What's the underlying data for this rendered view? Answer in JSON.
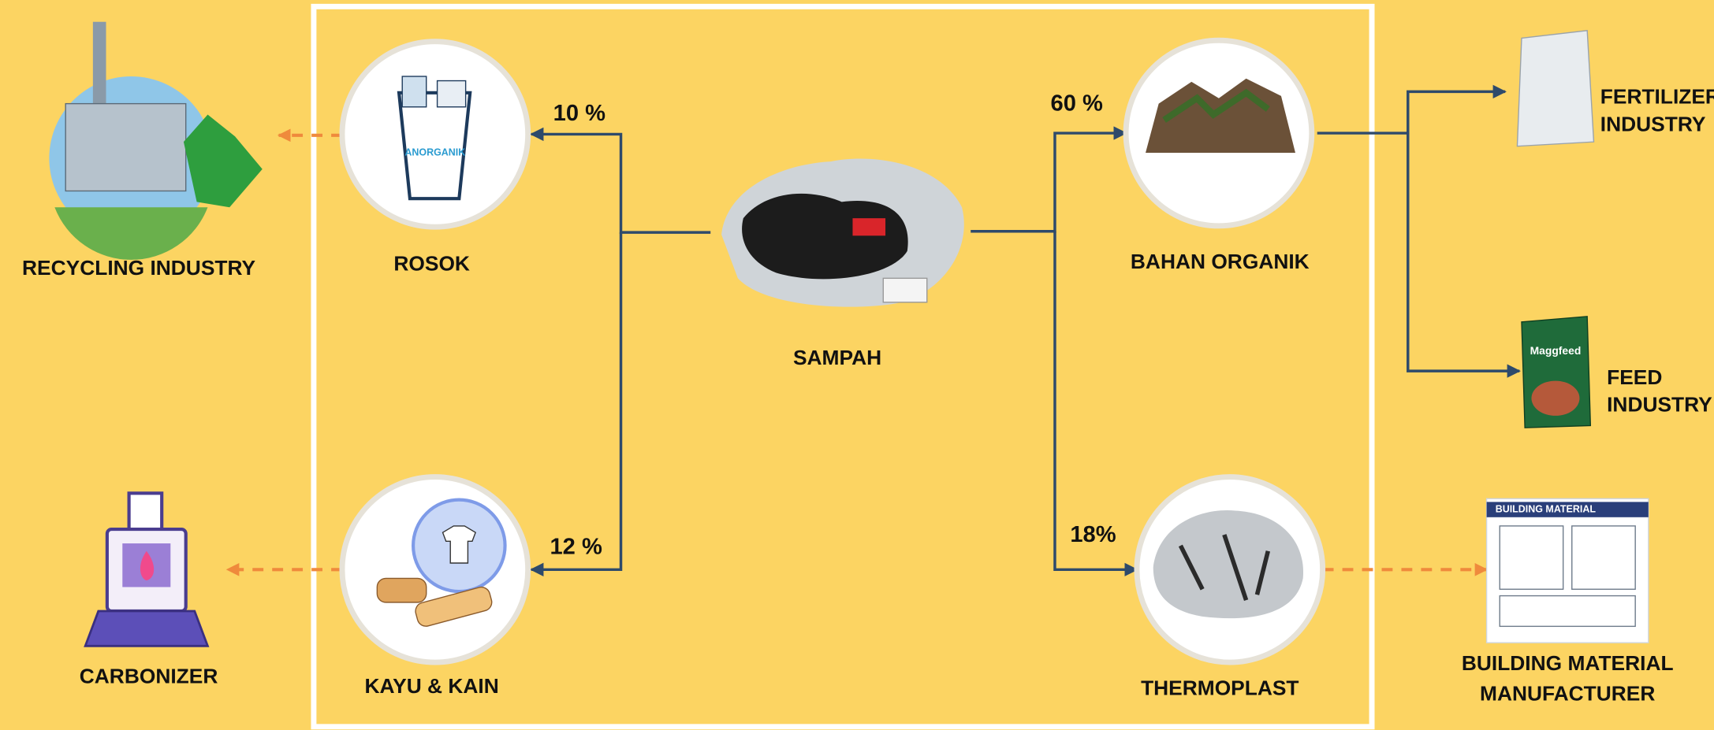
{
  "center": {
    "label": "SAMPAH"
  },
  "branches": [
    {
      "label": "ROSOK",
      "share": "10 %",
      "icon_text": "ANORGANIK"
    },
    {
      "label": "KAYU & KAIN",
      "share": "12 %"
    },
    {
      "label": "BAHAN ORGANIK",
      "share": "60 %"
    },
    {
      "label": "THERMOPLAST",
      "share": "18%"
    }
  ],
  "destinations": [
    {
      "lines": [
        "RECYCLING INDUSTRY"
      ]
    },
    {
      "lines": [
        "CARBONIZER"
      ]
    },
    {
      "lines": [
        "FERTILIZER",
        "INDUSTRY"
      ]
    },
    {
      "lines": [
        "FEED",
        "INDUSTRY"
      ],
      "icon_text": "Maggfeed"
    },
    {
      "lines": [
        "BUILDING MATERIAL",
        "MANUFACTURER"
      ],
      "icon_text": "BUILDING MATERIAL"
    }
  ]
}
